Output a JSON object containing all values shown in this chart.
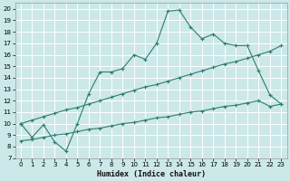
{
  "xlabel": "Humidex (Indice chaleur)",
  "bg_color": "#cce8e8",
  "grid_color": "#ffffff",
  "line_color": "#2e7d6e",
  "xlim": [
    -0.5,
    23.5
  ],
  "ylim": [
    7,
    20.5
  ],
  "xticks": [
    0,
    1,
    2,
    3,
    4,
    5,
    6,
    7,
    8,
    9,
    10,
    11,
    12,
    13,
    14,
    15,
    16,
    17,
    18,
    19,
    20,
    21,
    22,
    23
  ],
  "yticks": [
    7,
    8,
    9,
    10,
    11,
    12,
    13,
    14,
    15,
    16,
    17,
    18,
    19,
    20
  ],
  "line1_x": [
    0,
    1,
    2,
    3,
    4,
    5,
    6,
    7,
    8,
    9,
    10,
    11,
    12,
    13,
    14,
    15,
    16,
    17,
    18,
    19,
    20,
    21,
    22,
    23
  ],
  "line1_y": [
    10.0,
    8.8,
    9.9,
    8.4,
    7.6,
    10.0,
    12.6,
    14.5,
    14.5,
    14.8,
    16.0,
    15.6,
    17.0,
    19.8,
    19.9,
    18.4,
    17.4,
    17.8,
    17.0,
    16.8,
    16.8,
    14.6,
    12.5,
    11.7
  ],
  "line2_x": [
    0,
    1,
    2,
    3,
    4,
    5,
    6,
    7,
    8,
    9,
    10,
    11,
    12,
    13,
    14,
    15,
    16,
    17,
    18,
    19,
    20,
    21,
    22,
    23
  ],
  "line2_y": [
    10.0,
    10.3,
    10.6,
    10.9,
    11.2,
    11.4,
    11.7,
    12.0,
    12.3,
    12.6,
    12.9,
    13.2,
    13.4,
    13.7,
    14.0,
    14.3,
    14.6,
    14.9,
    15.2,
    15.4,
    15.7,
    16.0,
    16.3,
    16.8
  ],
  "line3_x": [
    0,
    1,
    2,
    3,
    4,
    5,
    6,
    7,
    8,
    9,
    10,
    11,
    12,
    13,
    14,
    15,
    16,
    17,
    18,
    19,
    20,
    21,
    22,
    23
  ],
  "line3_y": [
    8.5,
    8.6,
    8.8,
    9.0,
    9.1,
    9.3,
    9.5,
    9.6,
    9.8,
    10.0,
    10.1,
    10.3,
    10.5,
    10.6,
    10.8,
    11.0,
    11.1,
    11.3,
    11.5,
    11.6,
    11.8,
    12.0,
    11.5,
    11.7
  ],
  "tick_fontsize": 5,
  "xlabel_fontsize": 6
}
